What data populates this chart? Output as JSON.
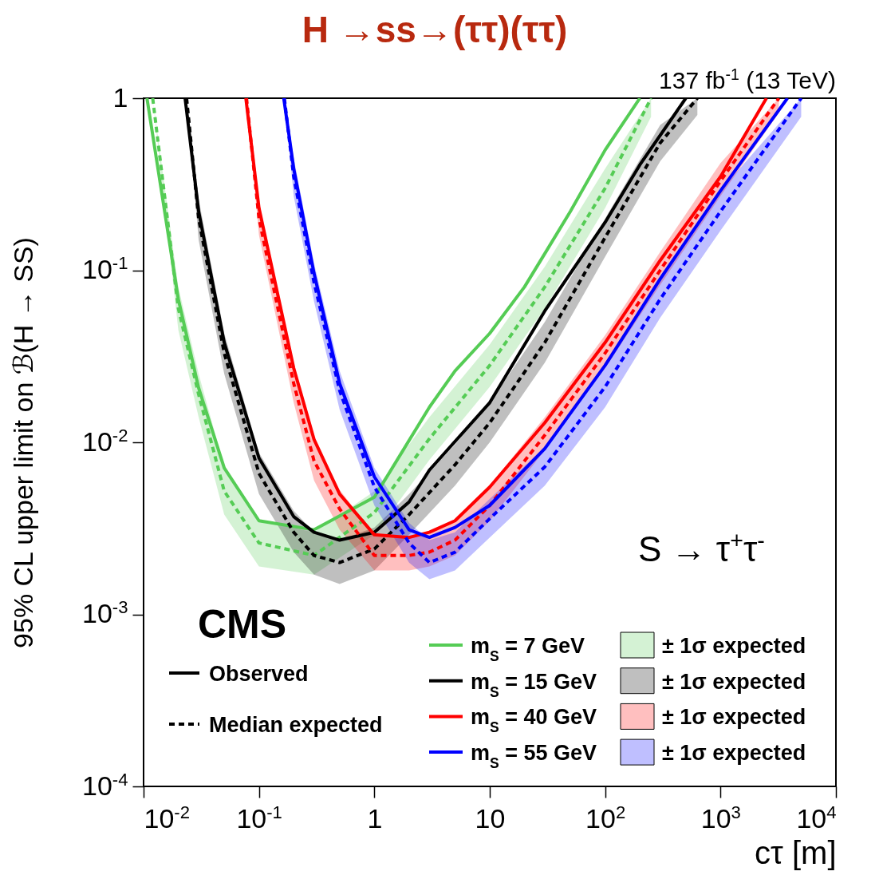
{
  "chart_data": {
    "type": "line",
    "title": "H →ss→(ττ)(ττ)",
    "xlabel": "cτ [m]",
    "ylabel": "95% CL upper limit on ℬ(H → SS)",
    "log": "xy",
    "legend": "bottom right",
    "xlim": [
      0.01,
      10000
    ],
    "ylim": [
      0.0001,
      1
    ],
    "xticks": [
      {
        "value": 0.01,
        "label": "10$^{-2}$"
      },
      {
        "value": 0.1,
        "label": "10$^{-1}$"
      },
      1,
      10,
      {
        "value": 100,
        "label": "10$^{2}$"
      },
      {
        "value": 1000,
        "label": "10$^{3}$"
      },
      {
        "value": 10000,
        "label": "10$^{4}$"
      }
    ],
    "yticks": [
      {
        "value": 0.0001,
        "label": "10$^{-4}$"
      },
      {
        "value": 0.001,
        "label": "10$^{-3}$"
      },
      {
        "value": 0.01,
        "label": "10$^{-2}$"
      },
      {
        "value": 0.1,
        "label": "10$^{-1}$"
      },
      1
    ],
    "annotations": [
      "137 fb$^{-1}$ (13 TeV)",
      "CMS",
      "S → τ$^{+}$τ$^{-}$",
      "Observed",
      "Median expected"
    ],
    "series": [
      {
        "type": "line",
        "name": "m$_{S}$ = 7 GeV",
        "color": "#55cc55",
        "line_style": "solid",
        "x": [
          0.0107,
          0.02,
          0.03,
          0.05,
          0.1,
          0.3,
          1,
          3,
          5,
          10,
          20,
          30,
          50,
          100,
          200
        ],
        "values": [
          1,
          0.068,
          0.0207,
          0.0071,
          0.0035,
          0.0031,
          0.0048,
          0.016,
          0.026,
          0.043,
          0.08,
          0.125,
          0.22,
          0.5,
          1
        ]
      },
      {
        "type": "line",
        "name": "± 1σ expected",
        "color": "#55cc55",
        "line_style": "dashed",
        "x": [
          0.012,
          0.02,
          0.03,
          0.05,
          0.1,
          0.3,
          1,
          3,
          10,
          30,
          100,
          250
        ],
        "values": [
          1,
          0.06,
          0.019,
          0.0052,
          0.0026,
          0.0022,
          0.0039,
          0.0105,
          0.028,
          0.08,
          0.3,
          1
        ],
        "lower": [
          1,
          0.045,
          0.014,
          0.0038,
          0.0019,
          0.0017,
          0.0029,
          0.0079,
          0.021,
          0.06,
          0.23,
          0.78
        ],
        "upper": [
          1,
          0.08,
          0.025,
          0.0072,
          0.0035,
          0.003,
          0.0052,
          0.014,
          0.037,
          0.105,
          0.39,
          1
        ]
      },
      {
        "type": "line",
        "name": "m$_{S}$ = 15 GeV",
        "color": "#000000",
        "line_style": "solid",
        "x": [
          0.0229,
          0.03,
          0.05,
          0.1,
          0.2,
          0.3,
          0.5,
          1,
          2,
          3,
          10,
          30,
          100,
          200,
          500
        ],
        "values": [
          1,
          0.22,
          0.038,
          0.0081,
          0.0037,
          0.003,
          0.0027,
          0.003,
          0.0045,
          0.0069,
          0.017,
          0.058,
          0.19,
          0.41,
          1
        ]
      },
      {
        "type": "line",
        "name": "± 1σ expected",
        "color": "#000000",
        "line_style": "dashed",
        "x": [
          0.0236,
          0.03,
          0.05,
          0.1,
          0.2,
          0.3,
          0.5,
          1,
          2,
          5,
          10,
          30,
          100,
          300,
          630
        ],
        "values": [
          1,
          0.2,
          0.033,
          0.0066,
          0.003,
          0.0022,
          0.002,
          0.0024,
          0.0038,
          0.0074,
          0.013,
          0.038,
          0.155,
          0.55,
          1
        ],
        "lower": [
          1,
          0.15,
          0.025,
          0.005,
          0.0023,
          0.0017,
          0.0015,
          0.0018,
          0.0029,
          0.0056,
          0.01,
          0.029,
          0.12,
          0.43,
          0.8
        ],
        "upper": [
          1,
          0.26,
          0.043,
          0.0087,
          0.004,
          0.003,
          0.0027,
          0.0032,
          0.005,
          0.0097,
          0.017,
          0.05,
          0.2,
          0.7,
          1
        ]
      },
      {
        "type": "line",
        "name": "m$_{S}$ = 40 GeV",
        "color": "#ff0000",
        "line_style": "solid",
        "x": [
          0.077,
          0.1,
          0.2,
          0.3,
          0.5,
          1,
          2,
          3,
          5,
          10,
          30,
          100,
          300,
          1000,
          2500
        ],
        "values": [
          1,
          0.23,
          0.027,
          0.0104,
          0.005,
          0.0029,
          0.0028,
          0.003,
          0.0035,
          0.0055,
          0.013,
          0.038,
          0.114,
          0.35,
          1
        ]
      },
      {
        "type": "line",
        "name": "± 1σ expected",
        "color": "#ff0000",
        "line_style": "dashed",
        "x": [
          0.078,
          0.1,
          0.2,
          0.3,
          0.5,
          1,
          2,
          3,
          5,
          10,
          30,
          100,
          300,
          1000,
          3200
        ],
        "values": [
          1,
          0.2,
          0.022,
          0.0078,
          0.0041,
          0.0022,
          0.0022,
          0.0023,
          0.0027,
          0.0043,
          0.011,
          0.033,
          0.1,
          0.33,
          1
        ],
        "lower": [
          1,
          0.16,
          0.017,
          0.006,
          0.0031,
          0.0018,
          0.0018,
          0.0019,
          0.0022,
          0.0035,
          0.009,
          0.027,
          0.082,
          0.27,
          0.82
        ],
        "upper": [
          1,
          0.25,
          0.028,
          0.0101,
          0.0053,
          0.0029,
          0.0028,
          0.003,
          0.0035,
          0.0056,
          0.014,
          0.042,
          0.128,
          0.42,
          1
        ]
      },
      {
        "type": "line",
        "name": "m$_{S}$ = 55 GeV",
        "color": "#0000ff",
        "line_style": "solid",
        "x": [
          0.164,
          0.2,
          0.3,
          0.5,
          1,
          2,
          3,
          5,
          10,
          30,
          100,
          300,
          1000,
          3800
        ],
        "values": [
          1,
          0.39,
          0.096,
          0.022,
          0.0063,
          0.0031,
          0.0028,
          0.0032,
          0.0043,
          0.0092,
          0.028,
          0.089,
          0.29,
          1
        ]
      },
      {
        "type": "line",
        "name": "± 1σ expected",
        "color": "#0000ff",
        "line_style": "dashed",
        "x": [
          0.166,
          0.2,
          0.3,
          0.5,
          1,
          2,
          3,
          5,
          10,
          30,
          100,
          300,
          1000,
          5000
        ],
        "values": [
          1,
          0.35,
          0.085,
          0.02,
          0.0055,
          0.0026,
          0.002,
          0.0023,
          0.0036,
          0.0072,
          0.021,
          0.068,
          0.22,
          1
        ],
        "lower": [
          1,
          0.27,
          0.066,
          0.0155,
          0.0043,
          0.002,
          0.0016,
          0.0018,
          0.0028,
          0.0056,
          0.016,
          0.053,
          0.17,
          0.78
        ],
        "upper": [
          1,
          0.45,
          0.11,
          0.026,
          0.0071,
          0.0034,
          0.0027,
          0.003,
          0.0047,
          0.0094,
          0.027,
          0.088,
          0.29,
          1
        ]
      }
    ]
  }
}
